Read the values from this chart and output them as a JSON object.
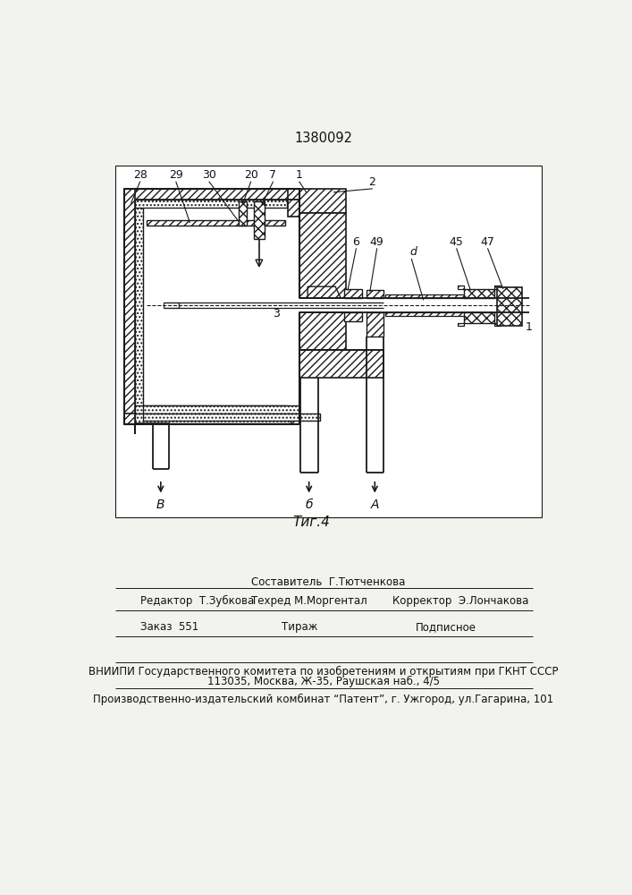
{
  "patent_number": "1380092",
  "fig_label": "Τиг.4",
  "bg_color": "#f2f2ee",
  "line_color": "#1a1a1a",
  "editor_line": "Редактор  Т.Зубкова",
  "composer_line": "Составитель  Г.Тютченкова",
  "techred_line": "Техред М.Моргентал",
  "corrector_line": "Корректор  Э.Лончакова",
  "order_line": "Заказ  551",
  "tirazh_line": "Тираж",
  "podpisnoe_line": "Подписное",
  "vniiipi_line": "ВНИИПИ Государственного комитета по изобретениям и открытиям при ГКНТ СССР",
  "address_line": "113035, Москва, Ж-35, Раушская наб., 4/5",
  "plant_line": "Производственно-издательский комбинат “Патент”, г. Ужгород, ул.Гагарина, 101"
}
